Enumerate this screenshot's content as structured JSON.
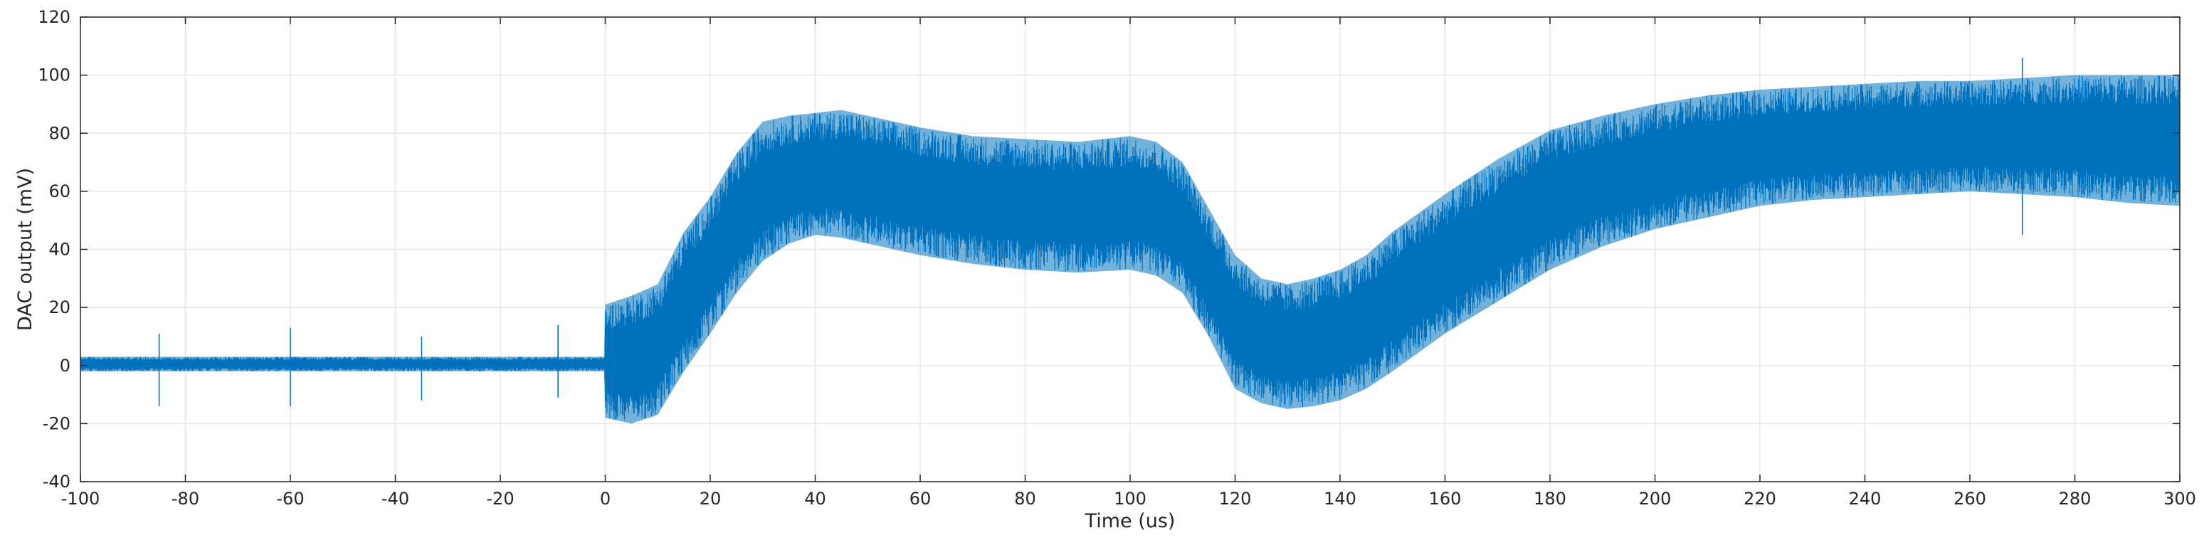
{
  "chart_data": {
    "type": "line",
    "title": "",
    "xlabel": "Time (us)",
    "ylabel": "DAC output (mV)",
    "xlim": [
      -100,
      300
    ],
    "ylim": [
      -40,
      120
    ],
    "xticks": [
      -100,
      -80,
      -60,
      -40,
      -20,
      0,
      20,
      40,
      60,
      80,
      100,
      120,
      140,
      160,
      180,
      200,
      220,
      240,
      260,
      280,
      300
    ],
    "yticks": [
      -40,
      -20,
      0,
      20,
      40,
      60,
      80,
      100,
      120
    ],
    "grid": true,
    "colors": {
      "series": "#0072BD",
      "grid": "#E6E6E6",
      "axis": "#262626"
    },
    "series": [
      {
        "name": "",
        "envelope": {
          "x": [
            -100,
            -90,
            -80,
            -70,
            -60,
            -50,
            -40,
            -30,
            -20,
            -10,
            -0.1,
            0,
            5,
            10,
            15,
            20,
            25,
            30,
            35,
            40,
            45,
            50,
            60,
            70,
            80,
            90,
            100,
            105,
            110,
            115,
            120,
            125,
            130,
            135,
            140,
            145,
            150,
            160,
            170,
            180,
            190,
            200,
            210,
            220,
            230,
            240,
            250,
            260,
            270,
            280,
            290,
            300
          ],
          "upper": [
            3,
            3,
            3,
            3,
            3,
            3,
            3,
            3,
            3,
            3,
            3,
            21,
            24,
            28,
            46,
            58,
            73,
            84,
            86,
            87,
            88,
            86,
            82,
            79,
            78,
            77,
            79,
            77,
            70,
            54,
            38,
            30,
            28,
            30,
            33,
            38,
            46,
            59,
            71,
            81,
            86,
            90,
            93,
            95,
            96,
            97,
            98,
            98,
            99,
            100,
            100,
            100
          ],
          "lower": [
            -2,
            -2,
            -2,
            -2,
            -2,
            -2,
            -2,
            -2,
            -2,
            -2,
            -2,
            -18,
            -20,
            -17,
            -2,
            11,
            25,
            36,
            42,
            45,
            44,
            42,
            38,
            35,
            33,
            32,
            33,
            31,
            25,
            10,
            -8,
            -13,
            -15,
            -14,
            -12,
            -8,
            -2,
            11,
            22,
            33,
            41,
            47,
            51,
            55,
            57,
            58,
            59,
            60,
            59,
            58,
            56,
            55
          ]
        },
        "spikes": [
          {
            "x": -85,
            "min": -14,
            "max": 11
          },
          {
            "x": -60,
            "min": -14,
            "max": 13
          },
          {
            "x": -35,
            "min": -12,
            "max": 10
          },
          {
            "x": -9,
            "min": -11,
            "max": 14
          },
          {
            "x": 270,
            "min": 45,
            "max": 106
          }
        ]
      }
    ]
  }
}
